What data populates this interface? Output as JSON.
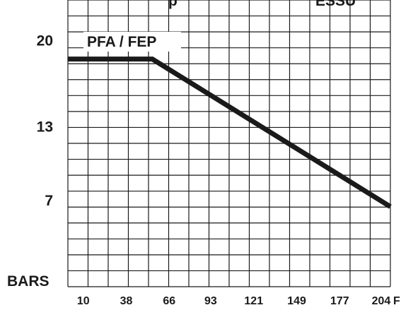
{
  "chart_data": {
    "type": "line",
    "title": "pressure",
    "title_visible_fragment": "p",
    "title_suffix_fragment": "ESSU",
    "series": [
      {
        "name": "PFA / FEP",
        "x": [
          0,
          55,
          210
        ],
        "y": [
          18.5,
          18.5,
          6.5
        ]
      }
    ],
    "y_ticks": [
      {
        "label": "20",
        "value": 20
      },
      {
        "label": "13",
        "value": 13
      },
      {
        "label": "7",
        "value": 7
      }
    ],
    "ylabel": "BARS",
    "x_ticks": [
      {
        "label": "10",
        "value": 10
      },
      {
        "label": "38",
        "value": 38
      },
      {
        "label": "66",
        "value": 66
      },
      {
        "label": "93",
        "value": 93
      },
      {
        "label": "121",
        "value": 121
      },
      {
        "label": "149",
        "value": 149
      },
      {
        "label": "177",
        "value": 177
      },
      {
        "label": "204",
        "value": 204
      }
    ],
    "xlabel": "F",
    "xlim": [
      0,
      210
    ],
    "ylim": [
      0,
      23.3
    ],
    "grid": true,
    "line_color": "#1a1a1a"
  }
}
